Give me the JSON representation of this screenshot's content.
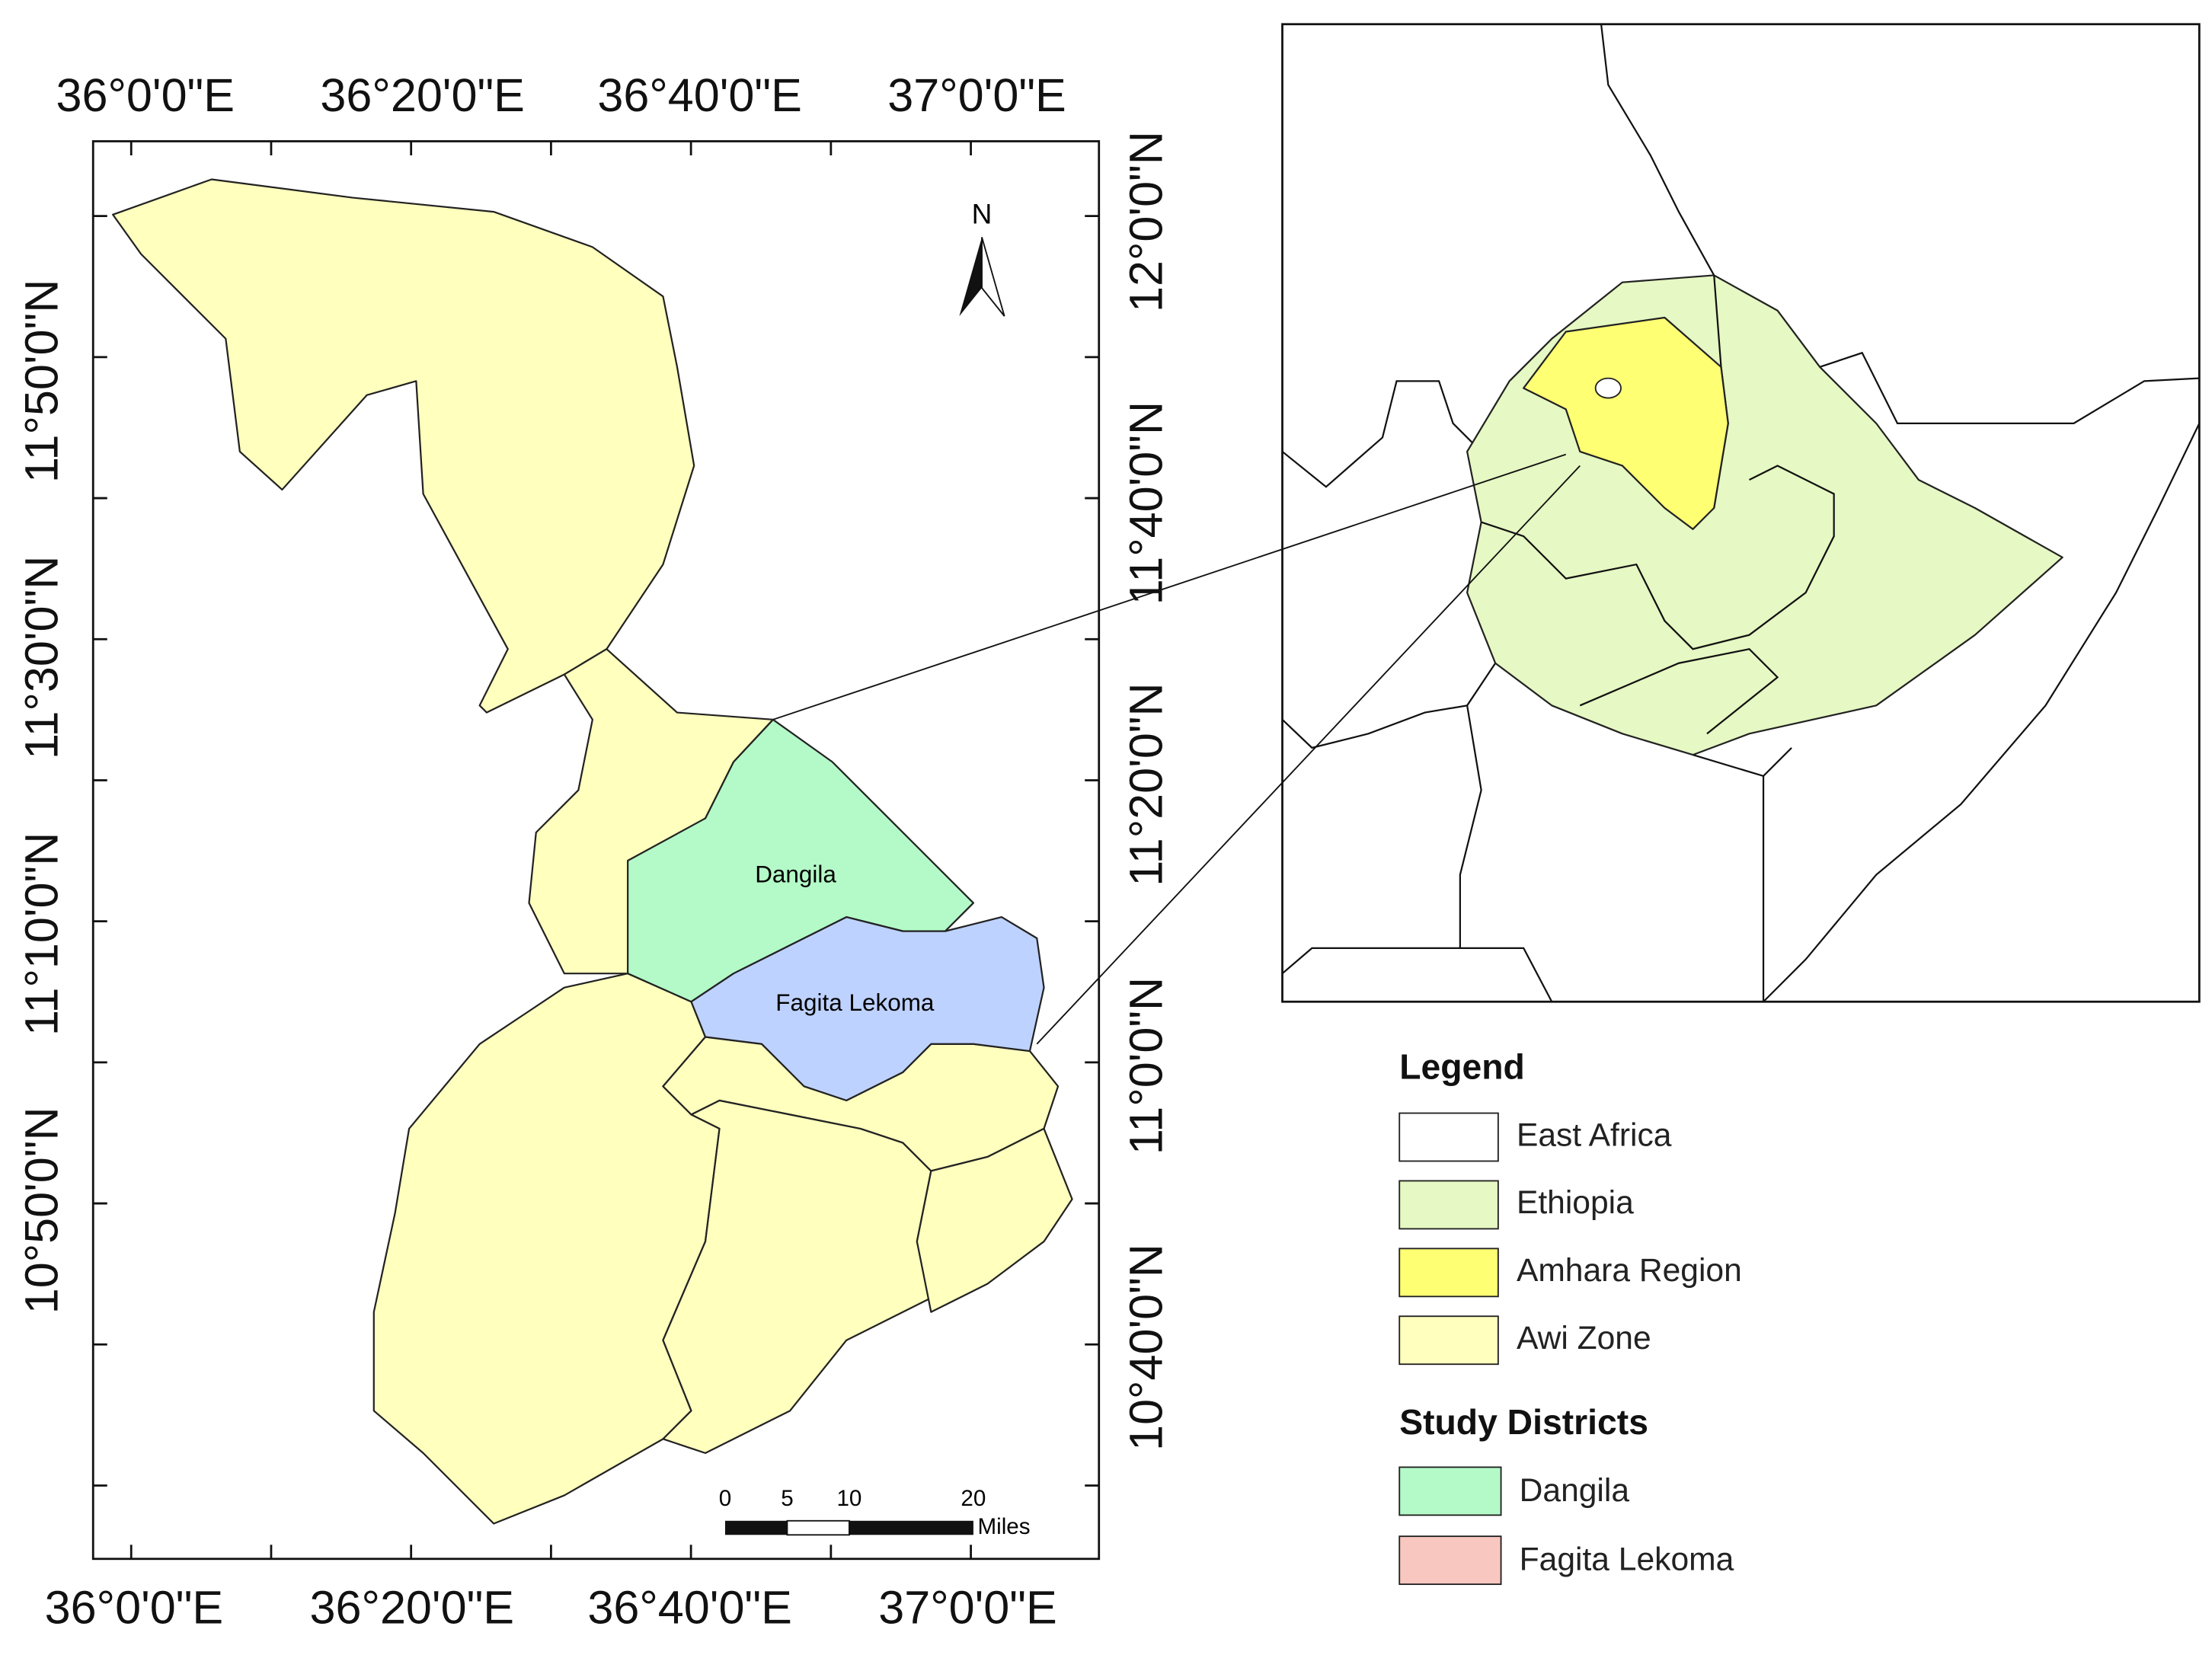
{
  "map": {
    "top_labels": [
      "36°0'0\"E",
      "36°20'0\"E",
      "36°40'0\"E",
      "37°0'0\"E"
    ],
    "bottom_labels": [
      "36°0'0\"E",
      "36°20'0\"E",
      "36°40'0\"E",
      "37°0'0\"E"
    ],
    "left_labels": [
      "11°50'0\"N",
      "11°30'0\"N",
      "11°10'0\"N",
      "10°50'0\"N"
    ],
    "right_labels": [
      "12°0'0\"N",
      "11°40'0\"N",
      "11°20'0\"N",
      "11°0'0\"N",
      "10°40'0\"N"
    ],
    "north": "N",
    "districts": [
      "Dangila",
      "Fagita Lekoma"
    ],
    "scale": {
      "ticks": [
        "0",
        "5",
        "10",
        "20"
      ],
      "unit": "Miles"
    }
  },
  "legend": {
    "title": "Legend",
    "items": [
      "East Africa",
      "Ethiopia",
      "Amhara Region",
      "Awi Zone"
    ],
    "study_title": "Study Districts",
    "study_items": [
      "Dangila",
      "Fagita Lekoma"
    ]
  }
}
